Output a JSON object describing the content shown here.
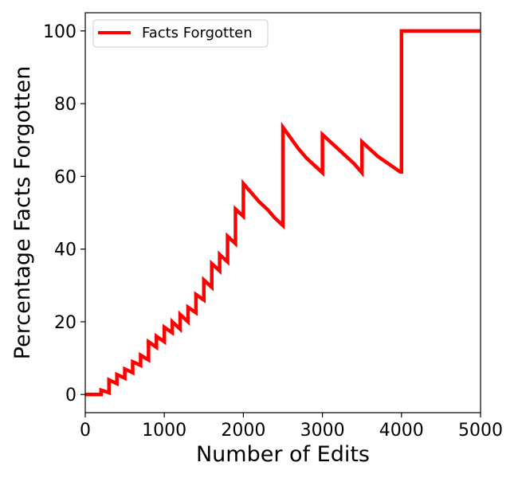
{
  "chart_data": {
    "type": "line",
    "title": "",
    "xlabel": "Number of Edits",
    "ylabel": "Percentage Facts Forgotten",
    "xlim": [
      0,
      5000
    ],
    "ylim": [
      -5,
      105
    ],
    "xticks": [
      0,
      1000,
      2000,
      3000,
      4000,
      5000
    ],
    "xtick_labels": [
      "0",
      "1000",
      "2000",
      "3000",
      "4000",
      "5000"
    ],
    "yticks": [
      0,
      20,
      40,
      60,
      80,
      100
    ],
    "ytick_labels": [
      "0",
      "20",
      "40",
      "60",
      "80",
      "100"
    ],
    "grid": false,
    "legend": {
      "position": "top-left",
      "entries": [
        "Facts Forgotten"
      ]
    },
    "series": [
      {
        "name": "Facts Forgotten",
        "color": "#ff0000",
        "points": [
          [
            0,
            0
          ],
          [
            200,
            0
          ],
          [
            200,
            1.2
          ],
          [
            300,
            0.5
          ],
          [
            300,
            4.0
          ],
          [
            400,
            3.0
          ],
          [
            400,
            5.5
          ],
          [
            500,
            4.5
          ],
          [
            500,
            7.0
          ],
          [
            600,
            6.0
          ],
          [
            600,
            9.0
          ],
          [
            700,
            8.0
          ],
          [
            700,
            10.8
          ],
          [
            800,
            9.5
          ],
          [
            800,
            14.5
          ],
          [
            900,
            13.0
          ],
          [
            900,
            16.0
          ],
          [
            1000,
            14.5
          ],
          [
            1000,
            18.5
          ],
          [
            1100,
            17.0
          ],
          [
            1100,
            20.0
          ],
          [
            1200,
            18.0
          ],
          [
            1200,
            22.0
          ],
          [
            1300,
            20.0
          ],
          [
            1300,
            24.0
          ],
          [
            1400,
            22.5
          ],
          [
            1400,
            27.5
          ],
          [
            1500,
            26.0
          ],
          [
            1500,
            31.5
          ],
          [
            1600,
            29.5
          ],
          [
            1600,
            36.0
          ],
          [
            1700,
            34.0
          ],
          [
            1700,
            38.5
          ],
          [
            1800,
            36.5
          ],
          [
            1800,
            43.5
          ],
          [
            1900,
            41.5
          ],
          [
            1900,
            51.0
          ],
          [
            2000,
            49.0
          ],
          [
            2000,
            58.0
          ],
          [
            2100,
            55.5
          ],
          [
            2200,
            53.0
          ],
          [
            2300,
            51.0
          ],
          [
            2400,
            48.5
          ],
          [
            2500,
            46.5
          ],
          [
            2500,
            73.5
          ],
          [
            2600,
            70.5
          ],
          [
            2700,
            67.5
          ],
          [
            2800,
            65.0
          ],
          [
            2900,
            63.0
          ],
          [
            3000,
            61.0
          ],
          [
            3000,
            71.5
          ],
          [
            3100,
            69.5
          ],
          [
            3200,
            67.5
          ],
          [
            3300,
            65.5
          ],
          [
            3400,
            63.5
          ],
          [
            3500,
            61.0
          ],
          [
            3500,
            69.5
          ],
          [
            3600,
            67.5
          ],
          [
            3700,
            65.5
          ],
          [
            3800,
            64.0
          ],
          [
            3900,
            62.5
          ],
          [
            3985,
            61.2
          ],
          [
            4000,
            61.2
          ],
          [
            4000,
            100
          ],
          [
            5000,
            100
          ]
        ]
      }
    ]
  }
}
